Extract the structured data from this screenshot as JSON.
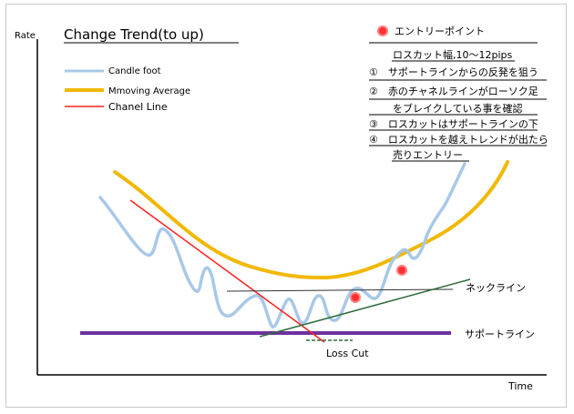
{
  "chart_data": {
    "type": "line",
    "title": "Change Trend(to up)",
    "xlabel": "Time",
    "ylabel": "Rate",
    "grid": false,
    "legend": {
      "placement": "top-left",
      "entries": [
        {
          "name": "Candle foot",
          "color": "#a9c8e8"
        },
        {
          "name": "Mmoving Average",
          "color": "#f2b800"
        },
        {
          "name": "Chanel Line",
          "color": "#ff2020"
        }
      ]
    },
    "series": [
      {
        "name": "Candle foot",
        "color": "#a9c8e8",
        "role": "price"
      },
      {
        "name": "Mmoving Average",
        "color": "#f2b800",
        "role": "ma"
      },
      {
        "name": "Chanel Line",
        "color": "#ff2020",
        "role": "channel"
      }
    ],
    "annotations": {
      "neckline": {
        "label": "ネックライン",
        "color": "#2e6b3a"
      },
      "support": {
        "label": "サポートライン",
        "color": "#7030a0"
      },
      "loss_cut": {
        "label": "Loss Cut",
        "color": "#2e6b3a"
      },
      "entry_point_label": "エントリーポイント",
      "entry_marker_color": "#ff3030"
    },
    "notes": [
      "ロスカット幅,10～12pips",
      "①　サポートラインからの反発を狙う",
      "②　赤のチャネルラインがローソク足",
      "をブレイクしている事を確認",
      "③　ロスカットはサポートラインの下",
      "④　ロスカットを越えトレンドが出たら",
      "売りエントリー"
    ]
  }
}
